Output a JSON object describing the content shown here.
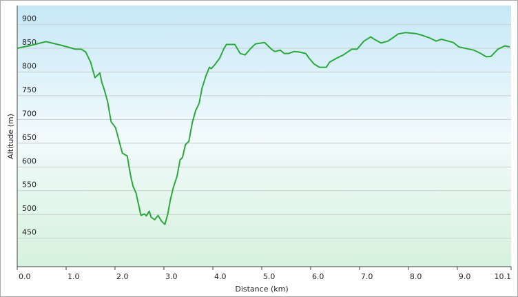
{
  "chart_data": {
    "type": "line",
    "x_label": "Distance  (km)",
    "y_label": "Altitude (m)",
    "xlim": [
      0,
      10.1
    ],
    "ylim": [
      390,
      940
    ],
    "xticks": [
      {
        "value": 0,
        "label": "0.0"
      },
      {
        "value": 1,
        "label": "1.0"
      },
      {
        "value": 2,
        "label": "2.0"
      },
      {
        "value": 3,
        "label": "3.0"
      },
      {
        "value": 4,
        "label": "4.0"
      },
      {
        "value": 5,
        "label": "5.0"
      },
      {
        "value": 6,
        "label": "6.0"
      },
      {
        "value": 7,
        "label": "7.0"
      },
      {
        "value": 8,
        "label": "8.0"
      },
      {
        "value": 9,
        "label": "9.0"
      },
      10.1
    ],
    "yticks": [
      450,
      500,
      550,
      600,
      650,
      700,
      750,
      800,
      850,
      900
    ],
    "grid": true,
    "series": [
      {
        "color": "#2aa83c",
        "x": [
          0.0,
          0.28,
          0.59,
          0.91,
          1.19,
          1.31,
          1.4,
          1.5,
          1.59,
          1.63,
          1.69,
          1.73,
          1.78,
          1.85,
          1.92,
          2.01,
          2.15,
          2.25,
          2.32,
          2.37,
          2.43,
          2.53,
          2.6,
          2.64,
          2.7,
          2.74,
          2.81,
          2.88,
          2.95,
          3.02,
          3.08,
          3.13,
          3.19,
          3.27,
          3.33,
          3.38,
          3.44,
          3.51,
          3.58,
          3.65,
          3.72,
          3.78,
          3.86,
          3.93,
          3.97,
          4.03,
          4.14,
          4.23,
          4.28,
          4.45,
          4.56,
          4.66,
          4.78,
          4.87,
          5.06,
          5.2,
          5.27,
          5.38,
          5.46,
          5.55,
          5.66,
          5.77,
          5.9,
          5.97,
          6.07,
          6.18,
          6.32,
          6.39,
          6.53,
          6.67,
          6.84,
          6.95,
          7.09,
          7.23,
          7.3,
          7.44,
          7.58,
          7.68,
          7.79,
          7.94,
          8.15,
          8.29,
          8.43,
          8.57,
          8.67,
          8.78,
          8.92,
          9.03,
          9.2,
          9.34,
          9.48,
          9.59,
          9.69,
          9.83,
          9.97,
          10.07
        ],
        "values": [
          850,
          856,
          864,
          856,
          848,
          848,
          842,
          821,
          788,
          792,
          798,
          778,
          763,
          737,
          695,
          683,
          629,
          623,
          581,
          559,
          545,
          498,
          501,
          497,
          507,
          494,
          489,
          498,
          486,
          479,
          501,
          530,
          556,
          581,
          615,
          620,
          647,
          654,
          693,
          719,
          734,
          766,
          792,
          810,
          807,
          814,
          829,
          850,
          858,
          858,
          839,
          836,
          850,
          859,
          862,
          848,
          843,
          846,
          839,
          839,
          843,
          842,
          839,
          829,
          817,
          810,
          810,
          821,
          829,
          836,
          848,
          848,
          865,
          874,
          869,
          861,
          865,
          872,
          880,
          883,
          881,
          877,
          872,
          865,
          869,
          866,
          862,
          853,
          849,
          846,
          839,
          832,
          833,
          848,
          855,
          853
        ]
      }
    ]
  }
}
